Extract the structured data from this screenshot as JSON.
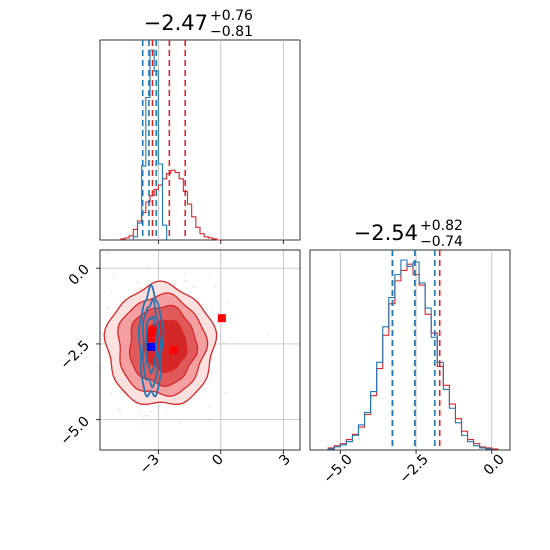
{
  "chart_data": {
    "type": "corner",
    "grid": true,
    "colors": {
      "red": "#d62728",
      "blue": "#1f77b4",
      "grid": "#b0b0b0"
    },
    "panels": [
      {
        "id": "hist_param1",
        "type": "histogram",
        "title": {
          "median": "−2.47",
          "plus": "+0.76",
          "minus": "−0.81"
        },
        "xlim": [
          -5.8,
          3.8
        ],
        "xgrid": [
          -3,
          0,
          3
        ],
        "series": [
          {
            "name": "",
            "color": "#d62728",
            "bin_edges": [
              -4.8,
              -4.6,
              -4.4,
              -4.2,
              -4.0,
              -3.8,
              -3.6,
              -3.4,
              -3.2,
              -3.0,
              -2.8,
              -2.6,
              -2.4,
              -2.2,
              -2.0,
              -1.8,
              -1.6,
              -1.4,
              -1.2,
              -1.0,
              -0.8,
              -0.6,
              -0.4,
              -0.2,
              0.0
            ],
            "counts": [
              1,
              2,
              4,
              10,
              18,
              26,
              36,
              42,
              48,
              52,
              58,
              63,
              66,
              64,
              58,
              46,
              34,
              22,
              12,
              6,
              3,
              2,
              1,
              0
            ],
            "quantiles": [
              -3.28,
              -2.47,
              -1.71
            ]
          },
          {
            "name": "",
            "color": "#1f77b4",
            "bin_edges": [
              -4.2,
              -4.0,
              -3.8,
              -3.6,
              -3.4,
              -3.2,
              -3.0,
              -2.8,
              -2.6
            ],
            "counts": [
              3,
              16,
              70,
              135,
              180,
              160,
              72,
              14
            ],
            "quantiles": [
              -3.75,
              -3.45,
              -3.1
            ]
          }
        ]
      },
      {
        "id": "hist_param2",
        "type": "histogram",
        "title": {
          "median": "−2.54",
          "plus": "+0.82",
          "minus": "−0.74"
        },
        "xlim": [
          -6.0,
          0.6
        ],
        "xgrid": [
          -5.0,
          -2.5,
          0.0
        ],
        "xticks": [
          "−5.0",
          "−2.5",
          "0.0"
        ],
        "series": [
          {
            "name": "",
            "color": "#d62728",
            "bin_edges": [
              -5.4,
              -5.2,
              -5.0,
              -4.8,
              -4.6,
              -4.4,
              -4.2,
              -4.0,
              -3.8,
              -3.6,
              -3.4,
              -3.2,
              -3.0,
              -2.8,
              -2.6,
              -2.4,
              -2.2,
              -2.0,
              -1.8,
              -1.6,
              -1.4,
              -1.2,
              -1.0,
              -0.8,
              -0.6,
              -0.4,
              -0.2,
              0.0,
              0.2
            ],
            "counts": [
              2,
              4,
              6,
              10,
              15,
              22,
              34,
              52,
              78,
              110,
              140,
              162,
              172,
              178,
              168,
              158,
              130,
              112,
              80,
              62,
              44,
              30,
              18,
              10,
              6,
              3,
              2,
              1
            ],
            "quantiles": [
              -3.28,
              -2.54,
              -1.72
            ]
          },
          {
            "name": "",
            "color": "#1f77b4",
            "bin_edges": [
              -5.4,
              -5.2,
              -5.0,
              -4.8,
              -4.6,
              -4.4,
              -4.2,
              -4.0,
              -3.8,
              -3.6,
              -3.4,
              -3.2,
              -3.0,
              -2.8,
              -2.6,
              -2.4,
              -2.2,
              -2.0,
              -1.8,
              -1.6,
              -1.4,
              -1.2,
              -1.0,
              -0.8,
              -0.6,
              -0.4,
              -0.2,
              0.0
            ],
            "counts": [
              1,
              3,
              5,
              8,
              14,
              24,
              36,
              56,
              84,
              118,
              146,
              168,
              182,
              176,
              180,
              160,
              136,
              108,
              84,
              58,
              40,
              26,
              14,
              8,
              4,
              2,
              1
            ],
            "quantiles": [
              -3.28,
              -2.54,
              -1.88
            ]
          }
        ]
      },
      {
        "id": "scatter_2d",
        "type": "contour",
        "xlim": [
          -5.8,
          3.8
        ],
        "ylim": [
          -6.0,
          0.6
        ],
        "xgrid": [
          -3,
          0,
          3
        ],
        "ygrid": [
          0.0,
          -2.5,
          -5.0
        ],
        "xticks": [
          "−3",
          "0",
          "3"
        ],
        "yticks": [
          "0.0",
          "−2.5",
          "−5.0"
        ],
        "red_contours": [
          {
            "cx": -2.9,
            "cy": -2.55,
            "rx": 2.6,
            "ry": 2.0,
            "fill": "#fde0e0"
          },
          {
            "cx": -2.85,
            "cy": -2.55,
            "rx": 2.1,
            "ry": 1.65,
            "fill": "#f4a0a2"
          },
          {
            "cx": -2.8,
            "cy": -2.55,
            "rx": 1.6,
            "ry": 1.3,
            "fill": "#e05a5c"
          },
          {
            "cx": -2.65,
            "cy": -2.55,
            "rx": 1.0,
            "ry": 0.85,
            "fill": "#d62728"
          }
        ],
        "blue_contours": [
          {
            "cx": -3.35,
            "cy": -2.5,
            "rx": 0.55,
            "ry": 1.75
          },
          {
            "cx": -3.35,
            "cy": -2.5,
            "rx": 0.4,
            "ry": 1.35
          },
          {
            "cx": -3.35,
            "cy": -2.5,
            "rx": 0.25,
            "ry": 0.9
          }
        ],
        "red_markers": [
          {
            "x": 0.05,
            "y": -1.65
          },
          {
            "x": -3.3,
            "y": -2.05
          },
          {
            "x": -3.35,
            "y": -2.3
          },
          {
            "x": -2.25,
            "y": -2.7
          }
        ],
        "blue_markers": [
          {
            "x": -3.35,
            "y": -2.6
          }
        ]
      }
    ]
  }
}
